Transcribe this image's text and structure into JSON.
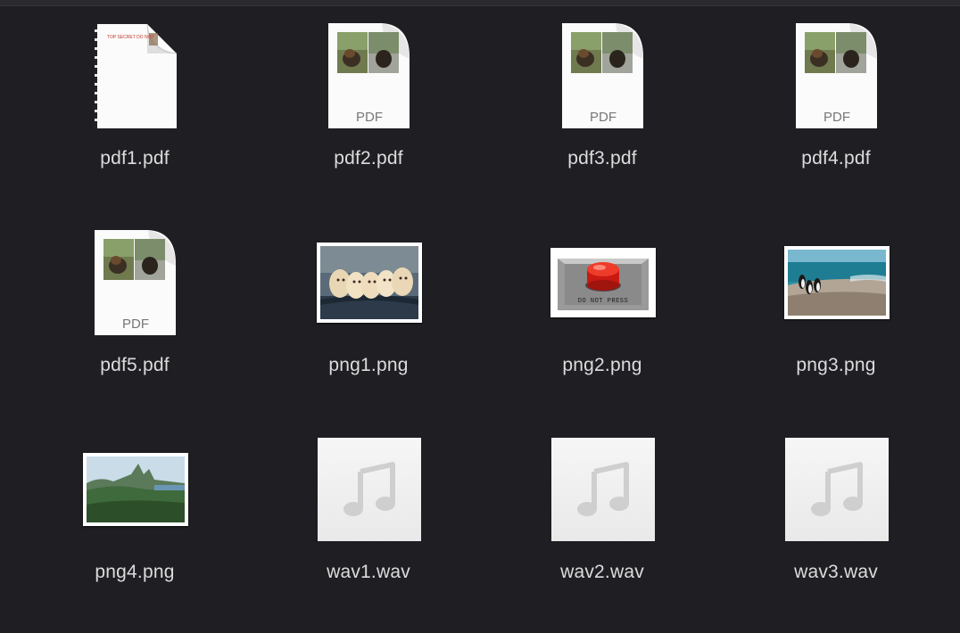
{
  "files": [
    {
      "name": "pdf1.pdf",
      "kind": "pdf-secret",
      "icon": "pdf-document-icon",
      "doc_header": "TOP SECRET DO NOT"
    },
    {
      "name": "pdf2.pdf",
      "kind": "pdf",
      "icon": "pdf-document-icon",
      "badge": "PDF"
    },
    {
      "name": "pdf3.pdf",
      "kind": "pdf",
      "icon": "pdf-document-icon",
      "badge": "PDF"
    },
    {
      "name": "pdf4.pdf",
      "kind": "pdf",
      "icon": "pdf-document-icon",
      "badge": "PDF"
    },
    {
      "name": "pdf5.pdf",
      "kind": "pdf",
      "icon": "pdf-document-icon",
      "badge": "PDF"
    },
    {
      "name": "png1.png",
      "kind": "png",
      "icon": "puppies-thumbnail"
    },
    {
      "name": "png2.png",
      "kind": "png",
      "icon": "red-button-thumbnail",
      "image_text": "DO NOT PRESS"
    },
    {
      "name": "png3.png",
      "kind": "png",
      "icon": "penguins-thumbnail"
    },
    {
      "name": "png4.png",
      "kind": "png",
      "icon": "mountains-thumbnail"
    },
    {
      "name": "wav1.wav",
      "kind": "wav",
      "icon": "music-note-icon"
    },
    {
      "name": "wav2.wav",
      "kind": "wav",
      "icon": "music-note-icon"
    },
    {
      "name": "wav3.wav",
      "kind": "wav",
      "icon": "music-note-icon"
    }
  ],
  "colors": {
    "background": "#1f1e23",
    "label": "#dcdcdc",
    "secret_red": "#c0392b"
  }
}
